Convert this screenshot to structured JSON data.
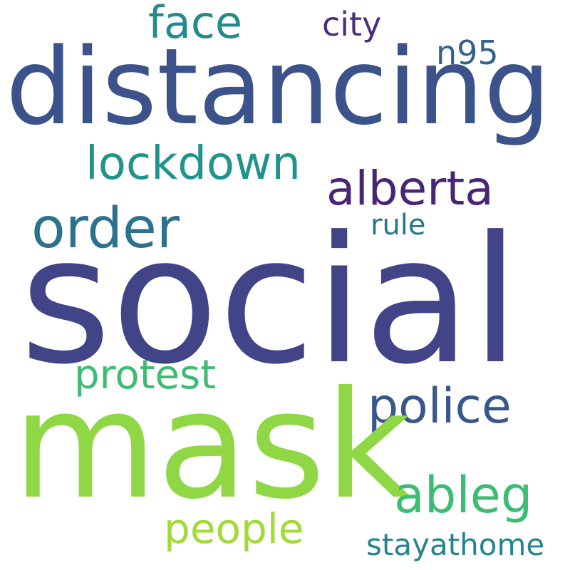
{
  "wordcloud": {
    "background": "#ffffff",
    "words": [
      {
        "key": "social",
        "text": "social",
        "color": "#414487"
      },
      {
        "key": "mask",
        "text": "mask",
        "color": "#8fd744"
      },
      {
        "key": "distancing",
        "text": "distancing",
        "color": "#3b528b"
      },
      {
        "key": "order",
        "text": "order",
        "color": "#2c728e"
      },
      {
        "key": "police",
        "text": "police",
        "color": "#38588c"
      },
      {
        "key": "ableg",
        "text": "ableg",
        "color": "#3dbc74"
      },
      {
        "key": "alberta",
        "text": "alberta",
        "color": "#482576"
      },
      {
        "key": "lockdown",
        "text": "lockdown",
        "color": "#20938c"
      },
      {
        "key": "people",
        "text": "people",
        "color": "#a2da37"
      },
      {
        "key": "protest",
        "text": "protest",
        "color": "#3fbc73"
      },
      {
        "key": "face",
        "text": "face",
        "color": "#238a8d"
      },
      {
        "key": "n95",
        "text": "n95",
        "color": "#33638d"
      },
      {
        "key": "city",
        "text": "city",
        "color": "#472d7b"
      },
      {
        "key": "rule",
        "text": "rule",
        "color": "#2a768e"
      },
      {
        "key": "stayathome",
        "text": "stayathome",
        "color": "#25848e"
      }
    ]
  }
}
